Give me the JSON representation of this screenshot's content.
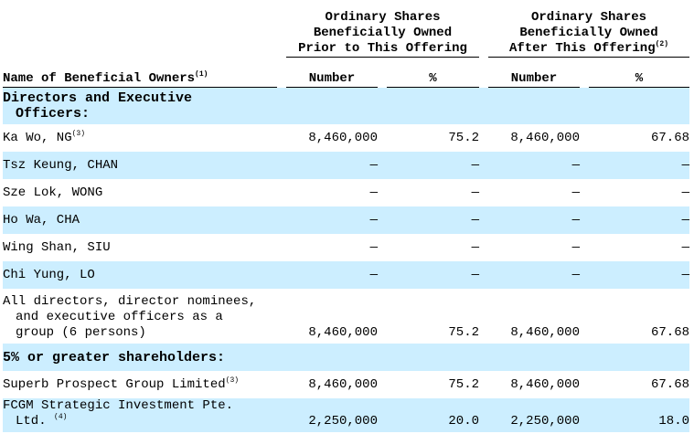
{
  "header": {
    "name_col": "Name of Beneficial Owners",
    "name_note": "(1)",
    "prior": "Ordinary Shares Beneficially Owned Prior to This Offering",
    "prior_lines": [
      "Ordinary Shares",
      "Beneficially Owned",
      "Prior to This Offering"
    ],
    "after_lines": [
      "Ordinary Shares",
      "Beneficially Owned",
      "After This Offering"
    ],
    "after_note": "(2)",
    "number": "Number",
    "pct": "%"
  },
  "sections": {
    "directors": [
      "Directors and Executive",
      "Officers:"
    ],
    "greater": "5% or greater shareholders:"
  },
  "rows": [
    {
      "name": "Ka Wo, NG",
      "note": "(3)",
      "prior_num": "8,460,000",
      "prior_pct": "75.2",
      "after_num": "8,460,000",
      "after_pct": "67.68"
    },
    {
      "name": "Tsz Keung, CHAN",
      "note": "",
      "prior_num": "—",
      "prior_pct": "—",
      "after_num": "—",
      "after_pct": "—"
    },
    {
      "name": "Sze Lok, WONG",
      "note": "",
      "prior_num": "—",
      "prior_pct": "—",
      "after_num": "—",
      "after_pct": "—"
    },
    {
      "name": "Ho Wa, CHA",
      "note": "",
      "prior_num": "—",
      "prior_pct": "—",
      "after_num": "—",
      "after_pct": "—"
    },
    {
      "name": "Wing Shan, SIU",
      "note": "",
      "prior_num": "—",
      "prior_pct": "—",
      "after_num": "—",
      "after_pct": "—"
    },
    {
      "name": "Chi Yung, LO",
      "note": "",
      "prior_num": "—",
      "prior_pct": "—",
      "after_num": "—",
      "after_pct": "—"
    },
    {
      "name_lines": [
        "All directors, director nominees,",
        "and executive officers as a",
        "group (6 persons)"
      ],
      "prior_num": "8,460,000",
      "prior_pct": "75.2",
      "after_num": "8,460,000",
      "after_pct": "67.68"
    },
    {
      "name": "Superb Prospect Group Limited",
      "note": "(3)",
      "prior_num": "8,460,000",
      "prior_pct": "75.2",
      "after_num": "8,460,000",
      "after_pct": "67.68"
    },
    {
      "name_lines": [
        "FCGM Strategic Investment Pte.",
        "Ltd. "
      ],
      "note": "(4)",
      "prior_num": "2,250,000",
      "prior_pct": "20.0",
      "after_num": "2,250,000",
      "after_pct": "18.0"
    }
  ],
  "colors": {
    "row_highlight": "#cceeff"
  }
}
